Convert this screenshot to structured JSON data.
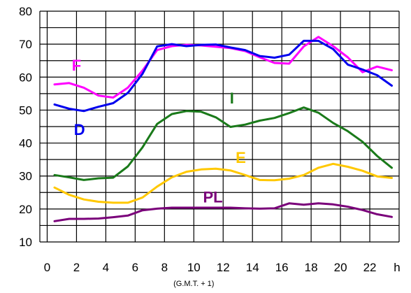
{
  "chart_data": {
    "type": "line",
    "title": "",
    "xlabel": "",
    "ylabel": "",
    "x_unit_label": "h",
    "x_note": "(G.M.T. + 1)",
    "xlim": [
      -0.5,
      24
    ],
    "ylim": [
      10,
      80
    ],
    "x_ticks": [
      {
        "value": 0,
        "label": "0"
      },
      {
        "value": 2,
        "label": "2"
      },
      {
        "value": 4,
        "label": "4"
      },
      {
        "value": 6,
        "label": "6"
      },
      {
        "value": 8,
        "label": "8"
      },
      {
        "value": 10,
        "label": "10"
      },
      {
        "value": 12,
        "label": "12"
      },
      {
        "value": 14,
        "label": "14"
      },
      {
        "value": 16,
        "label": "16"
      },
      {
        "value": 18,
        "label": "18"
      },
      {
        "value": 20,
        "label": "20"
      },
      {
        "value": 22,
        "label": "22"
      }
    ],
    "y_ticks": [
      {
        "value": 10,
        "label": "10"
      },
      {
        "value": 20,
        "label": "20"
      },
      {
        "value": 30,
        "label": "30"
      },
      {
        "value": 40,
        "label": "40"
      },
      {
        "value": 50,
        "label": "50"
      },
      {
        "value": 60,
        "label": "60"
      },
      {
        "value": 70,
        "label": "70"
      },
      {
        "value": 80,
        "label": "80"
      }
    ],
    "grid": true,
    "x": [
      0.5,
      1.5,
      2.5,
      3.5,
      4.5,
      5.5,
      6.5,
      7.5,
      8.5,
      9.5,
      10.5,
      11.5,
      12.5,
      13.5,
      14.5,
      15.5,
      16.5,
      17.5,
      18.5,
      19.5,
      20.5,
      21.5,
      22.5,
      23.5
    ],
    "series": [
      {
        "name": "F",
        "color": "#ff00ff",
        "values": [
          57.8,
          58.2,
          56.8,
          54.4,
          53.8,
          56.8,
          62.0,
          68.2,
          69.4,
          69.8,
          69.6,
          69.2,
          68.8,
          67.9,
          66.0,
          64.3,
          64.1,
          69.3,
          72.2,
          69.4,
          66.0,
          61.5,
          63.2,
          62.1
        ]
      },
      {
        "name": "D",
        "color": "#0000ee",
        "values": [
          51.7,
          50.4,
          49.7,
          51.0,
          52.1,
          55.2,
          61.0,
          69.3,
          70.0,
          69.4,
          69.8,
          69.9,
          69.0,
          68.2,
          66.4,
          65.9,
          66.8,
          71.0,
          71.0,
          68.5,
          63.8,
          62.3,
          60.6,
          57.4
        ]
      },
      {
        "name": "I",
        "color": "#1a7a1a",
        "values": [
          30.3,
          29.6,
          28.8,
          29.3,
          29.5,
          32.9,
          38.7,
          45.8,
          48.8,
          49.7,
          49.5,
          47.8,
          44.9,
          45.6,
          46.8,
          47.6,
          49.1,
          50.8,
          49.2,
          46.1,
          43.6,
          40.4,
          36.1,
          32.5
        ]
      },
      {
        "name": "E",
        "color": "#ffc800",
        "values": [
          26.5,
          24.3,
          22.9,
          22.2,
          21.9,
          21.9,
          23.5,
          26.8,
          29.6,
          31.3,
          32.0,
          32.2,
          31.7,
          30.3,
          28.8,
          28.7,
          29.2,
          30.3,
          32.5,
          33.7,
          32.8,
          31.6,
          29.9,
          29.4
        ]
      },
      {
        "name": "PL",
        "color": "#7a007a",
        "values": [
          16.3,
          17.0,
          17.0,
          17.1,
          17.5,
          18.0,
          19.6,
          20.1,
          20.4,
          20.4,
          20.4,
          20.4,
          20.4,
          20.2,
          20.1,
          20.2,
          21.7,
          21.3,
          21.7,
          21.4,
          20.7,
          19.7,
          18.4,
          17.6
        ]
      }
    ],
    "labels": [
      {
        "text": "F",
        "color": "#ff00ff",
        "x": 2.0,
        "y": 62.0
      },
      {
        "text": "D",
        "color": "#0000ee",
        "x": 2.2,
        "y": 42.5
      },
      {
        "text": "I",
        "color": "#1a7a1a",
        "x": 12.6,
        "y": 52.0
      },
      {
        "text": "E",
        "color": "#ffc800",
        "x": 13.2,
        "y": 34.0
      },
      {
        "text": "PL",
        "color": "#7a007a",
        "x": 11.3,
        "y": 22.0
      }
    ]
  }
}
